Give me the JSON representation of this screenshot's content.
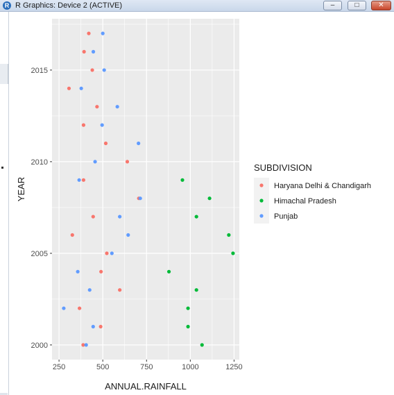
{
  "window": {
    "title": "R Graphics: Device 2 (ACTIVE)",
    "buttons": {
      "minimize": "–",
      "maximize": "□",
      "close": "✕"
    }
  },
  "colors": {
    "panel_background": "#ebebeb",
    "grid_major": "#ffffff",
    "series": {
      "Haryana Delhi & Chandigarh": "#F8766D",
      "Himachal Pradesh": "#00BA38",
      "Punjab": "#619CFF"
    }
  },
  "chart_data": {
    "type": "scatter",
    "xlabel": "ANNUAL.RAINFALL",
    "ylabel": "YEAR",
    "xlim": [
      210,
      1280
    ],
    "ylim": [
      1999.2,
      2017.8
    ],
    "x_ticks": [
      250,
      500,
      750,
      1000,
      1250
    ],
    "y_ticks": [
      2000,
      2005,
      2010,
      2015
    ],
    "grid": true,
    "legend": {
      "title": "SUBDIVISION",
      "position": "right"
    },
    "series": [
      {
        "name": "Haryana Delhi & Chandigarh",
        "color": "#F8766D",
        "points": [
          {
            "x": 388,
            "y": 2000
          },
          {
            "x": 488,
            "y": 2001
          },
          {
            "x": 367,
            "y": 2002
          },
          {
            "x": 597,
            "y": 2003
          },
          {
            "x": 490,
            "y": 2004
          },
          {
            "x": 523,
            "y": 2005
          },
          {
            "x": 326,
            "y": 2006
          },
          {
            "x": 445,
            "y": 2007
          },
          {
            "x": 706,
            "y": 2008
          },
          {
            "x": 390,
            "y": 2009
          },
          {
            "x": 640,
            "y": 2010
          },
          {
            "x": 517,
            "y": 2011
          },
          {
            "x": 390,
            "y": 2012
          },
          {
            "x": 467,
            "y": 2013
          },
          {
            "x": 307,
            "y": 2014
          },
          {
            "x": 440,
            "y": 2015
          },
          {
            "x": 393,
            "y": 2016
          },
          {
            "x": 420,
            "y": 2017
          }
        ]
      },
      {
        "name": "Himachal Pradesh",
        "color": "#00BA38",
        "points": [
          {
            "x": 1067,
            "y": 2000
          },
          {
            "x": 987,
            "y": 2001
          },
          {
            "x": 987,
            "y": 2002
          },
          {
            "x": 1035,
            "y": 2003
          },
          {
            "x": 878,
            "y": 2004
          },
          {
            "x": 1244,
            "y": 2005
          },
          {
            "x": 1220,
            "y": 2006
          },
          {
            "x": 1035,
            "y": 2007
          },
          {
            "x": 1110,
            "y": 2008
          },
          {
            "x": 955,
            "y": 2009
          }
        ]
      },
      {
        "name": "Punjab",
        "color": "#619CFF",
        "points": [
          {
            "x": 405,
            "y": 2000
          },
          {
            "x": 445,
            "y": 2001
          },
          {
            "x": 277,
            "y": 2002
          },
          {
            "x": 425,
            "y": 2003
          },
          {
            "x": 357,
            "y": 2004
          },
          {
            "x": 552,
            "y": 2005
          },
          {
            "x": 645,
            "y": 2006
          },
          {
            "x": 597,
            "y": 2007
          },
          {
            "x": 714,
            "y": 2008
          },
          {
            "x": 365,
            "y": 2009
          },
          {
            "x": 456,
            "y": 2010
          },
          {
            "x": 704,
            "y": 2011
          },
          {
            "x": 496,
            "y": 2012
          },
          {
            "x": 583,
            "y": 2013
          },
          {
            "x": 377,
            "y": 2014
          },
          {
            "x": 508,
            "y": 2015
          },
          {
            "x": 446,
            "y": 2016
          },
          {
            "x": 500,
            "y": 2017
          }
        ]
      }
    ]
  }
}
